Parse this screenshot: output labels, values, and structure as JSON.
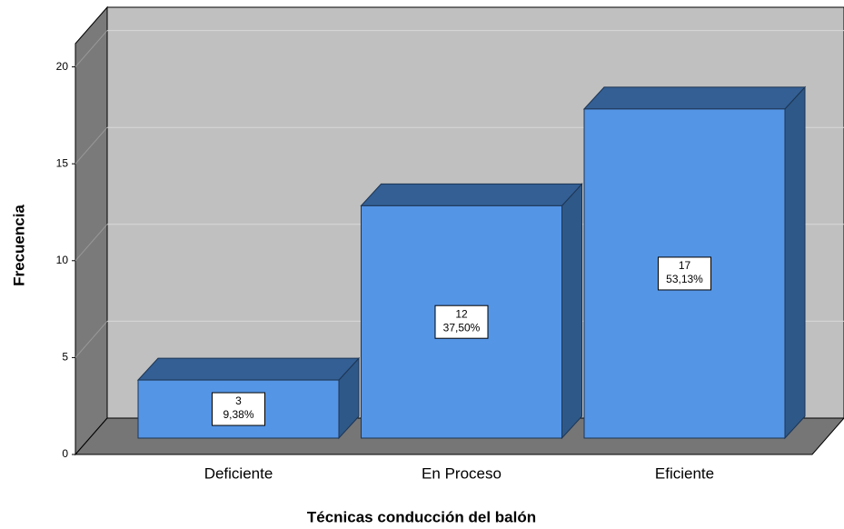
{
  "chart_data": {
    "type": "bar3d",
    "x_label": "Técnicas conducción del balón",
    "y_label": "Frecuencia",
    "categories": [
      "Deficiente",
      "En Proceso",
      "Eficiente"
    ],
    "values": [
      3,
      12,
      17
    ],
    "percent_labels": [
      "9,38%",
      "37,50%",
      "53,13%"
    ],
    "color": "#5595e5",
    "ylim": [
      0,
      21.2
    ],
    "yticks": [
      0,
      5,
      10,
      15,
      20
    ],
    "grid": true
  }
}
